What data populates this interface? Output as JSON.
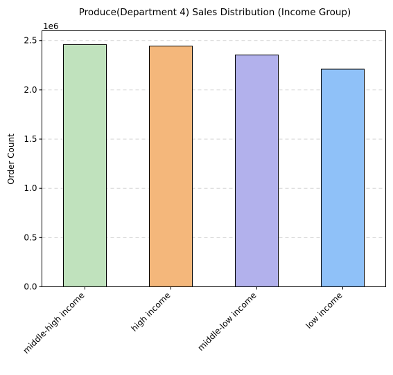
{
  "chart_data": {
    "type": "bar",
    "title": "Produce(Department 4) Sales Distribution (Income Group)",
    "xlabel": "",
    "ylabel": "Order Count",
    "y_offset_label": "1e6",
    "categories": [
      "middle-high income",
      "high income",
      "middle-low income",
      "low income"
    ],
    "values": [
      2460000,
      2445000,
      2355000,
      2210000
    ],
    "colors": [
      "#c0e2bd",
      "#f4b77b",
      "#b2b1ec",
      "#8fc1f8"
    ],
    "ylim": [
      0,
      2600000
    ],
    "yticks": [
      0,
      500000,
      1000000,
      1500000,
      2000000,
      2500000
    ],
    "ytick_labels": [
      "0.0",
      "0.5",
      "1.0",
      "1.5",
      "2.0",
      "2.5"
    ],
    "grid": "y-dashed",
    "legend": "none"
  }
}
